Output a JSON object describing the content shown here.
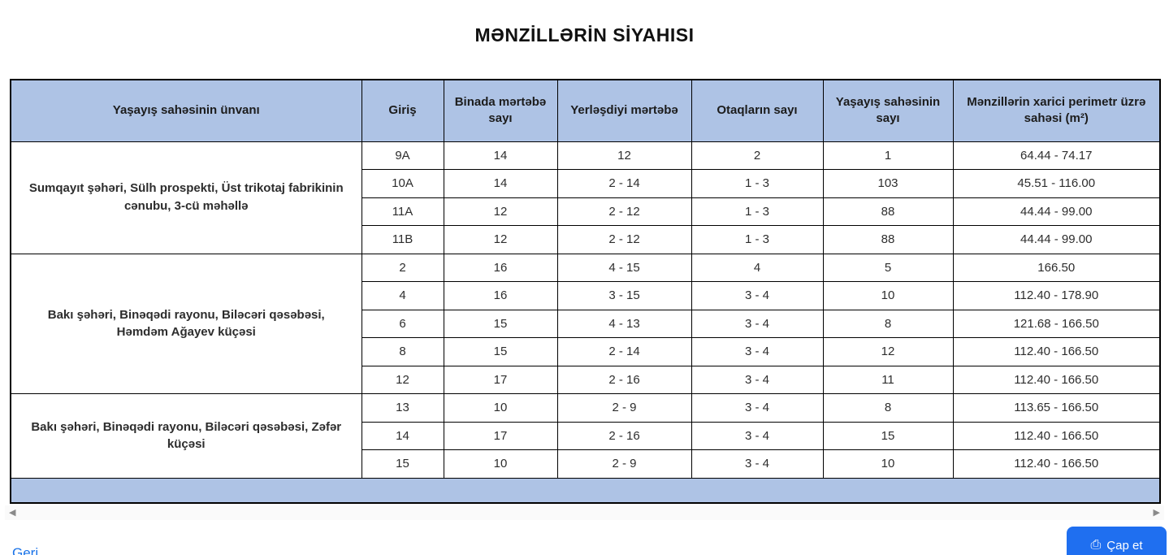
{
  "page": {
    "title": "MƏNZİLLƏRİN SİYAHISI"
  },
  "table": {
    "columns": [
      "Yaşayış sahəsinin ünvanı",
      "Giriş",
      "Binada mərtəbə sayı",
      "Yerləşdiyi mərtəbə",
      "Otaqların sayı",
      "Yaşayış sahəsinin sayı",
      "Mənzillərin xarici perimetr üzrə sahəsi (m²)"
    ],
    "groups": [
      {
        "address": "Sumqayıt şəhəri, Sülh prospekti, Üst trikotaj fabrikinin cənubu, 3-cü məhəllə",
        "rows": [
          [
            "9A",
            "14",
            "12",
            "2",
            "1",
            "64.44 - 74.17"
          ],
          [
            "10A",
            "14",
            "2 - 14",
            "1 - 3",
            "103",
            "45.51 - 116.00"
          ],
          [
            "11A",
            "12",
            "2 - 12",
            "1 - 3",
            "88",
            "44.44 - 99.00"
          ],
          [
            "11B",
            "12",
            "2 - 12",
            "1 - 3",
            "88",
            "44.44 - 99.00"
          ]
        ]
      },
      {
        "address": "Bakı şəhəri, Binəqədi rayonu, Biləcəri qəsəbəsi, Həmdəm Ağayev küçəsi",
        "rows": [
          [
            "2",
            "16",
            "4 - 15",
            "4",
            "5",
            "166.50"
          ],
          [
            "4",
            "16",
            "3 - 15",
            "3 - 4",
            "10",
            "112.40 - 178.90"
          ],
          [
            "6",
            "15",
            "4 - 13",
            "3 - 4",
            "8",
            "121.68 - 166.50"
          ],
          [
            "8",
            "15",
            "2 - 14",
            "3 - 4",
            "12",
            "112.40 - 166.50"
          ],
          [
            "12",
            "17",
            "2 - 16",
            "3 - 4",
            "11",
            "112.40 - 166.50"
          ]
        ]
      },
      {
        "address": "Bakı şəhəri, Binəqədi rayonu, Biləcəri qəsəbəsi, Zəfər küçəsi",
        "rows": [
          [
            "13",
            "10",
            "2 - 9",
            "3 - 4",
            "8",
            "113.65 - 166.50"
          ],
          [
            "14",
            "17",
            "2 - 16",
            "3 - 4",
            "15",
            "112.40 - 166.50"
          ],
          [
            "15",
            "10",
            "2 - 9",
            "3 - 4",
            "10",
            "112.40 - 166.50"
          ]
        ]
      }
    ]
  },
  "scrollbar": {
    "left_arrow": "◀",
    "right_arrow": "▶"
  },
  "footer": {
    "back_link": "Geri",
    "print_button_label": "Çap et",
    "printer_icon": "⎙"
  },
  "colors": {
    "header_bg": "#aec3e5",
    "border": "#000000",
    "button_blue": "#1f6ff0",
    "link_blue": "#1a73e8",
    "text": "#2d2d2d"
  }
}
